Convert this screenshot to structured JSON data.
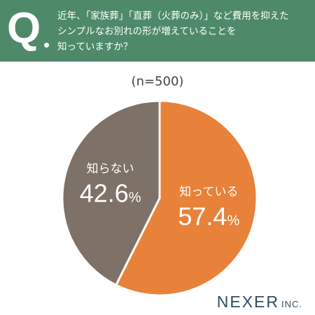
{
  "header": {
    "q_label": "Q",
    "question_lines": [
      "近年、「家族葬」「直葬（火葬のみ）」など費用を抑えた",
      "シンプルなお別れの形が増えていることを",
      "知っていますか？"
    ]
  },
  "sample_label": "(n=500)",
  "chart_data": {
    "type": "pie",
    "title": "",
    "slices": [
      {
        "label": "知っている",
        "value": 57.4,
        "display": "57.4",
        "unit": "%",
        "color": "#e8823a"
      },
      {
        "label": "知らない",
        "value": 42.6,
        "display": "42.6",
        "unit": "%",
        "color": "#7d7168"
      }
    ]
  },
  "brand": {
    "name": "NEXER",
    "suffix": "INC."
  },
  "colors": {
    "header": "#4e8a6a",
    "background": "#ffffff"
  }
}
